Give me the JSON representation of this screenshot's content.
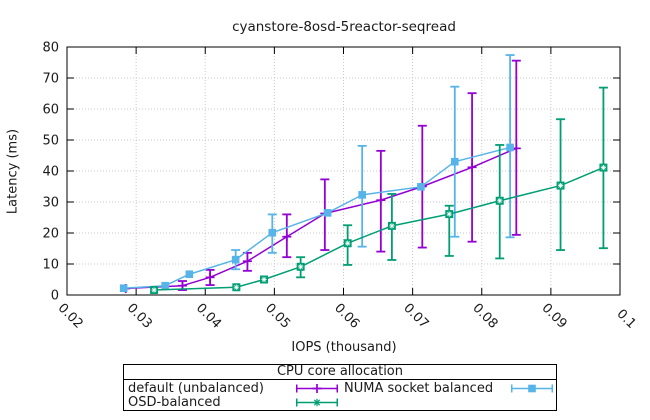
{
  "title": "cyanstore-8osd-5reactor-seqread",
  "legend": {
    "title": "CPU core allocation"
  },
  "colors": {
    "background": "#ffffff",
    "axis": "#000000",
    "grid": "#c8c8c8",
    "series_purple": "#9400d3",
    "series_blue": "#56b4e9",
    "series_green": "#009e73"
  },
  "chart_data": {
    "type": "line",
    "title": "cyanstore-8osd-5reactor-seqread",
    "xlabel": "IOPS (thousand)",
    "ylabel": "Latency (ms)",
    "xlim": [
      0.02,
      0.1
    ],
    "ylim": [
      0,
      80
    ],
    "grid": true,
    "legend_position": "below-plot-box",
    "x_ticks": [
      0.02,
      0.03,
      0.04,
      0.05,
      0.06,
      0.07,
      0.08,
      0.09,
      0.1
    ],
    "x_tick_labels": [
      "0.02",
      "0.03",
      "0.04",
      "0.05",
      "0.06",
      "0.07",
      "0.08",
      "0.09",
      "0.1"
    ],
    "y_ticks": [
      0,
      10,
      20,
      30,
      40,
      50,
      60,
      70,
      80
    ],
    "y_tick_labels": [
      "0",
      "10",
      "20",
      "30",
      "40",
      "50",
      "60",
      "70",
      "80"
    ],
    "series": [
      {
        "name": "default (unbalanced)",
        "color": "#9400d3",
        "marker": "plus",
        "legend_marker": "plus",
        "points": [
          {
            "x": 0.0285,
            "y": 2.1,
            "ylow": null,
            "yhigh": null
          },
          {
            "x": 0.0367,
            "y": 3.0,
            "ylow": 1.6,
            "yhigh": 4.5
          },
          {
            "x": 0.0407,
            "y": 5.7,
            "ylow": 3.2,
            "yhigh": 8.1
          },
          {
            "x": 0.0461,
            "y": 10.9,
            "ylow": 7.8,
            "yhigh": 13.6
          },
          {
            "x": 0.0518,
            "y": 18.8,
            "ylow": 12.2,
            "yhigh": 26.0
          },
          {
            "x": 0.0573,
            "y": 26.3,
            "ylow": 14.5,
            "yhigh": 37.3
          },
          {
            "x": 0.0654,
            "y": 30.6,
            "ylow": 14.0,
            "yhigh": 46.5
          },
          {
            "x": 0.0714,
            "y": 35.0,
            "ylow": 15.3,
            "yhigh": 54.6
          },
          {
            "x": 0.0786,
            "y": 41.2,
            "ylow": 17.2,
            "yhigh": 65.1
          },
          {
            "x": 0.085,
            "y": 47.3,
            "ylow": 19.4,
            "yhigh": 75.6
          }
        ]
      },
      {
        "name": "NUMA socket balanced",
        "color": "#56b4e9",
        "marker": "filled-square",
        "legend_marker": "filled-square",
        "points": [
          {
            "x": 0.0282,
            "y": 2.2,
            "ylow": null,
            "yhigh": null
          },
          {
            "x": 0.0342,
            "y": 3.0,
            "ylow": null,
            "yhigh": null
          },
          {
            "x": 0.0377,
            "y": 6.7,
            "ylow": null,
            "yhigh": null
          },
          {
            "x": 0.0444,
            "y": 11.4,
            "ylow": 8.3,
            "yhigh": 14.5
          },
          {
            "x": 0.0497,
            "y": 20.1,
            "ylow": 13.6,
            "yhigh": 26.0
          },
          {
            "x": 0.0577,
            "y": 26.5,
            "ylow": null,
            "yhigh": null
          },
          {
            "x": 0.0627,
            "y": 32.3,
            "ylow": 15.6,
            "yhigh": 48.1
          },
          {
            "x": 0.0712,
            "y": 34.9,
            "ylow": null,
            "yhigh": null
          },
          {
            "x": 0.0761,
            "y": 43.0,
            "ylow": 18.8,
            "yhigh": 67.2
          },
          {
            "x": 0.0841,
            "y": 47.6,
            "ylow": 18.6,
            "yhigh": 77.4
          }
        ]
      },
      {
        "name": "OSD-balanced",
        "color": "#009e73",
        "marker": "square-asterisk",
        "legend_marker": "asterisk",
        "points": [
          {
            "x": 0.0326,
            "y": 1.6,
            "ylow": null,
            "yhigh": null
          },
          {
            "x": 0.0445,
            "y": 2.5,
            "ylow": null,
            "yhigh": null
          },
          {
            "x": 0.0485,
            "y": 5.0,
            "ylow": null,
            "yhigh": null
          },
          {
            "x": 0.0538,
            "y": 9.1,
            "ylow": 5.7,
            "yhigh": 12.2
          },
          {
            "x": 0.0606,
            "y": 16.7,
            "ylow": 9.7,
            "yhigh": 22.5
          },
          {
            "x": 0.067,
            "y": 22.3,
            "ylow": 11.3,
            "yhigh": 32.6
          },
          {
            "x": 0.0753,
            "y": 26.1,
            "ylow": 12.6,
            "yhigh": 28.8
          },
          {
            "x": 0.0826,
            "y": 30.4,
            "ylow": 11.8,
            "yhigh": 48.4
          },
          {
            "x": 0.0914,
            "y": 35.3,
            "ylow": 14.5,
            "yhigh": 56.7
          },
          {
            "x": 0.0976,
            "y": 41.1,
            "ylow": 15.1,
            "yhigh": 66.9
          }
        ]
      }
    ]
  }
}
